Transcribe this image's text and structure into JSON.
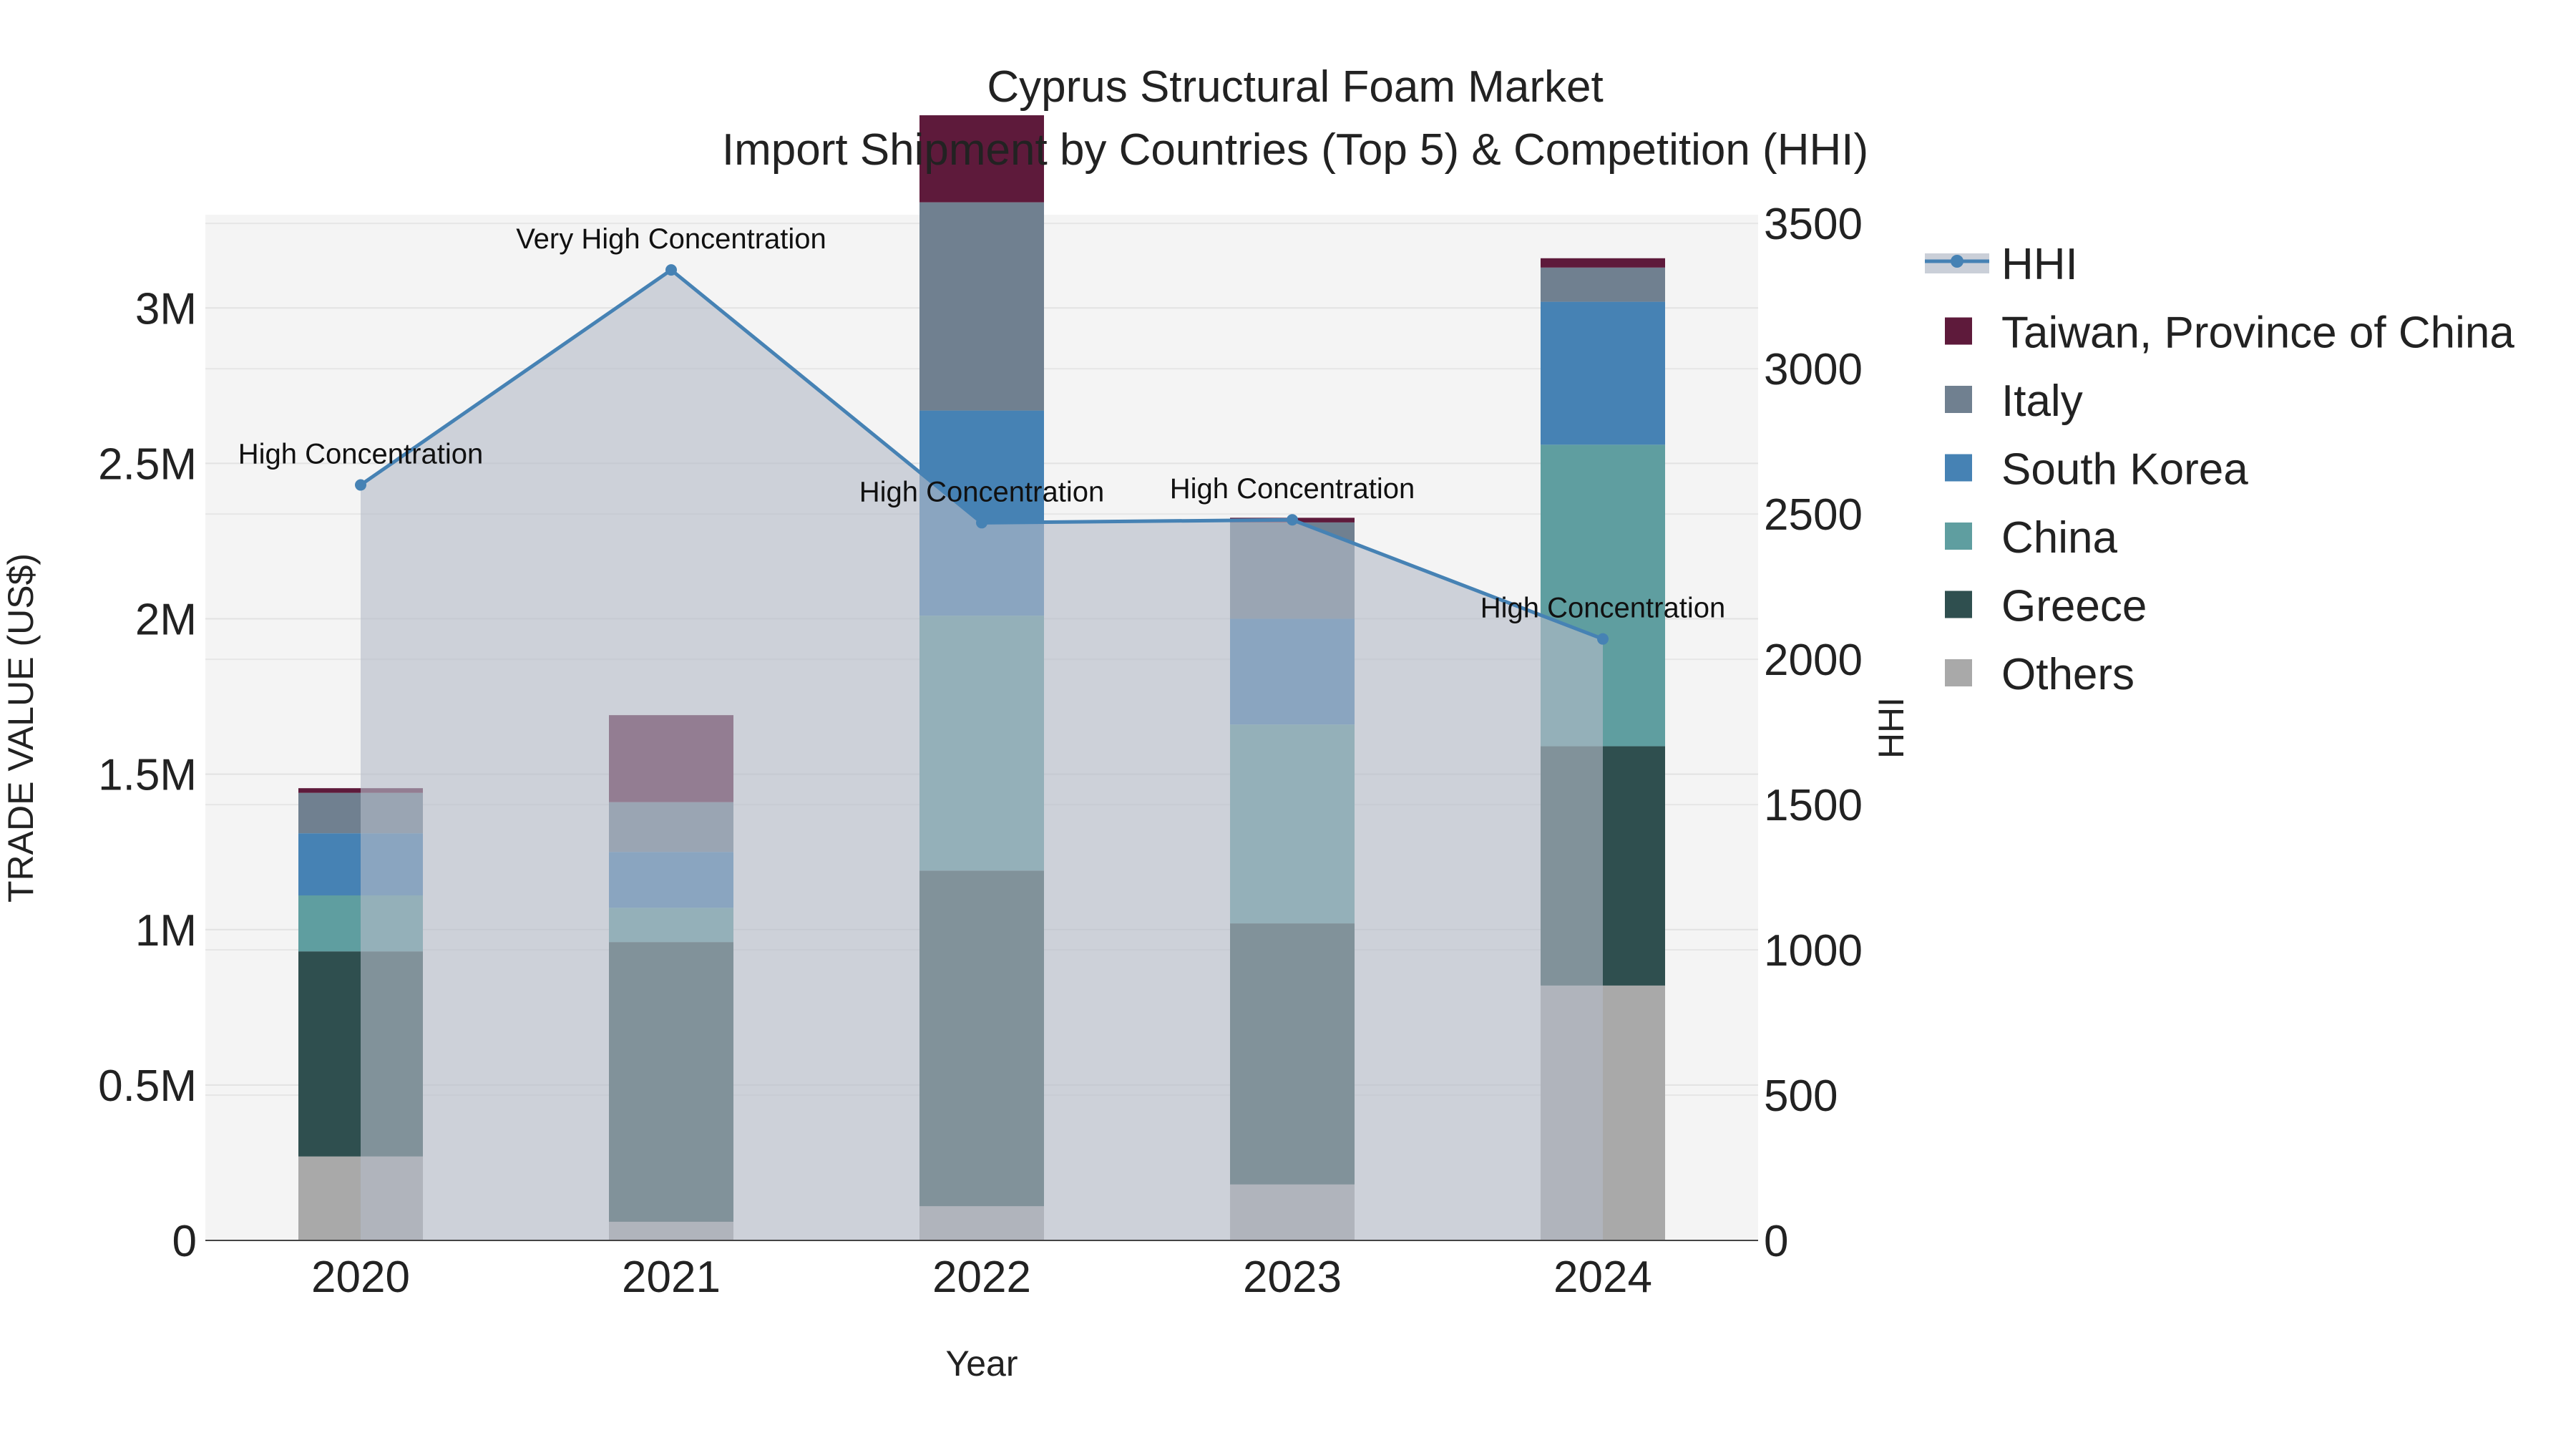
{
  "chart_data": {
    "type": "bar",
    "title_line1": "Cyprus Structural Foam Market",
    "title_line2": "Import Shipment by Countries (Top 5) & Competition (HHI)",
    "xlabel": "Year",
    "ylabel": "TRADE VALUE (US$)",
    "y2label": "HHI",
    "categories": [
      "2020",
      "2021",
      "2022",
      "2023",
      "2024"
    ],
    "ylim": [
      0,
      3300000
    ],
    "y2lim": [
      0,
      3530
    ],
    "y_ticks": [
      0,
      500000,
      1000000,
      1500000,
      2000000,
      2500000,
      3000000
    ],
    "y_tick_labels": [
      "0",
      "0.5M",
      "1M",
      "1.5M",
      "2M",
      "2.5M",
      "3M"
    ],
    "y2_ticks": [
      0,
      500,
      1000,
      1500,
      2000,
      2500,
      3000,
      3500
    ],
    "y2_tick_labels": [
      "0",
      "500",
      "1000",
      "1500",
      "2000",
      "2500",
      "3000",
      "3500"
    ],
    "series": [
      {
        "name": "Others",
        "color": "#a9a9a9",
        "values": [
          270000,
          60000,
          110000,
          180000,
          820000
        ]
      },
      {
        "name": "Greece",
        "color": "#2f4f4f",
        "values": [
          660000,
          900000,
          1080000,
          840000,
          770000
        ]
      },
      {
        "name": "China",
        "color": "#5f9ea0",
        "values": [
          180000,
          110000,
          820000,
          640000,
          970000
        ]
      },
      {
        "name": "South Korea",
        "color": "#4682b4",
        "values": [
          200000,
          180000,
          660000,
          340000,
          460000
        ]
      },
      {
        "name": "Italy",
        "color": "#708090",
        "values": [
          130000,
          160000,
          670000,
          310000,
          110000
        ]
      },
      {
        "name": "Taiwan, Province of China",
        "color": "#5e1a3b",
        "values": [
          15000,
          280000,
          280000,
          15000,
          30000
        ]
      }
    ],
    "hhi": {
      "name": "HHI",
      "color": "#4682b4",
      "values": [
        2600,
        3340,
        2470,
        2480,
        2070
      ],
      "labels": [
        "High Concentration",
        "Very High Concentration",
        "High Concentration",
        "High Concentration",
        "High Concentration"
      ]
    },
    "legend_order": [
      "HHI",
      "Taiwan, Province of China",
      "Italy",
      "South Korea",
      "China",
      "Greece",
      "Others"
    ],
    "legend_position": "right",
    "grid": true
  }
}
